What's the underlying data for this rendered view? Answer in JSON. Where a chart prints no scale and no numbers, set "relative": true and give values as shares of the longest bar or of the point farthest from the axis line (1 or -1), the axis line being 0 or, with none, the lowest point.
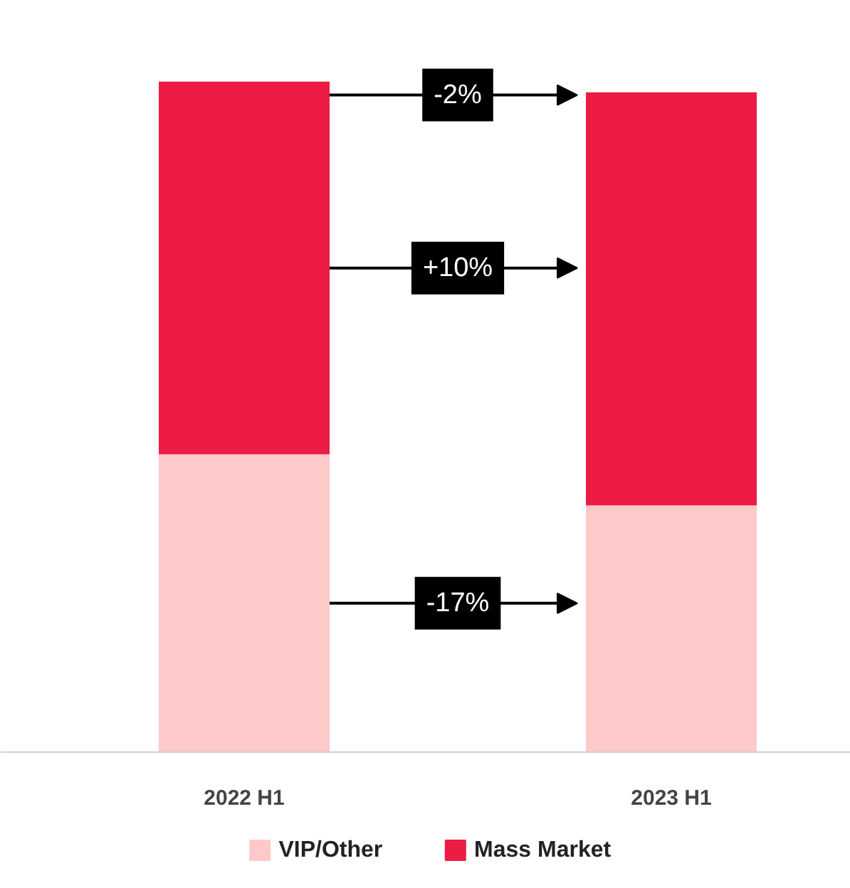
{
  "chart_data": {
    "type": "bar",
    "stacked": true,
    "relative": true,
    "categories": [
      "2022 H1",
      "2023 H1"
    ],
    "series": [
      {
        "name": "VIP/Other",
        "color": "#fdc9c9",
        "values": [
          0.444,
          0.368
        ]
      },
      {
        "name": "Mass Market",
        "color": "#ed1c45",
        "values": [
          0.556,
          0.616
        ]
      }
    ],
    "annotations": [
      "-2%",
      "+10%",
      "-17%"
    ],
    "legend": "bottom",
    "grid": false
  }
}
